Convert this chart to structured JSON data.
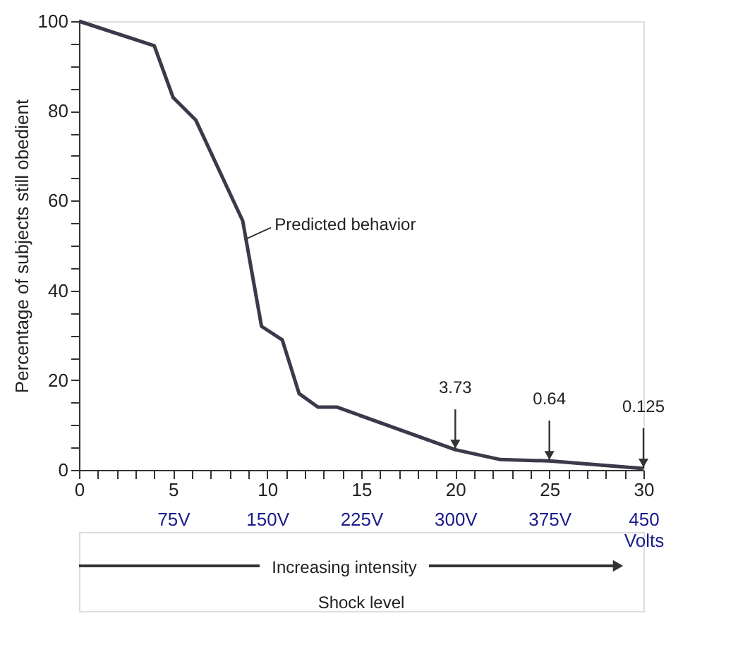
{
  "chart_data": {
    "type": "line",
    "xlabel": "Shock level",
    "ylabel": "Percentage of subjects still obedient",
    "series": [
      {
        "color": "#3a3a4a",
        "x": [
          0,
          4,
          5,
          6.2,
          8.7,
          9.7,
          10.8,
          11.7,
          12.7,
          13.7,
          20,
          22.4,
          25,
          30
        ],
        "values": [
          100,
          94.5,
          83,
          78,
          55.5,
          32,
          29,
          17,
          14,
          14,
          4.5,
          2.3,
          2,
          0.3
        ]
      }
    ],
    "xlim": [
      0,
      30
    ],
    "ylim": [
      0,
      100
    ],
    "xticks": [
      0,
      {
        "value": 1,
        "label": null
      },
      {
        "value": 2,
        "label": null
      },
      {
        "value": 3,
        "label": null
      },
      {
        "value": 4,
        "label": null
      },
      5,
      {
        "value": 6,
        "label": null
      },
      {
        "value": 7,
        "label": null
      },
      {
        "value": 8,
        "label": null
      },
      {
        "value": 9,
        "label": null
      },
      10,
      {
        "value": 11,
        "label": null
      },
      {
        "value": 12,
        "label": null
      },
      {
        "value": 13,
        "label": null
      },
      {
        "value": 14,
        "label": null
      },
      15,
      {
        "value": 16,
        "label": null
      },
      {
        "value": 17,
        "label": null
      },
      {
        "value": 18,
        "label": null
      },
      {
        "value": 19,
        "label": null
      },
      20,
      {
        "value": 21,
        "label": null
      },
      {
        "value": 22,
        "label": null
      },
      {
        "value": 23,
        "label": null
      },
      {
        "value": 24,
        "label": null
      },
      25,
      {
        "value": 26,
        "label": null
      },
      {
        "value": 27,
        "label": null
      },
      {
        "value": 28,
        "label": null
      },
      {
        "value": 29,
        "label": null
      },
      30
    ],
    "yticks": [
      0,
      {
        "value": 5,
        "label": null
      },
      {
        "value": 10,
        "label": null
      },
      {
        "value": 15,
        "label": null
      },
      20,
      {
        "value": 25,
        "label": null
      },
      {
        "value": 30,
        "label": null
      },
      {
        "value": 35,
        "label": null
      },
      40,
      {
        "value": 45,
        "label": null
      },
      {
        "value": 50,
        "label": null
      },
      {
        "value": 55,
        "label": null
      },
      60,
      {
        "value": 65,
        "label": null
      },
      {
        "value": 70,
        "label": null
      },
      {
        "value": 75,
        "label": null
      },
      80,
      {
        "value": 85,
        "label": null
      },
      {
        "value": 90,
        "label": null
      },
      {
        "value": 95,
        "label": null
      },
      100
    ],
    "x2label": "Increasing intensity",
    "x2lim": [
      0,
      450
    ],
    "x2ticks": [
      {
        "value": 75,
        "label": "75V"
      },
      {
        "value": 150,
        "label": "150V"
      },
      {
        "value": 225,
        "label": "225V"
      },
      {
        "value": 300,
        "label": "300V"
      },
      {
        "value": 375,
        "label": "375V"
      },
      {
        "value": 450,
        "label": "450 Volts"
      }
    ],
    "annotations": [
      {
        "text": "Predicted behavior",
        "x": 8.9,
        "y": 51.5
      },
      {
        "text": "3.73",
        "x": 20,
        "y": 4.5
      },
      {
        "text": "0.64",
        "x": 25,
        "y": 2
      },
      {
        "text": "0.125",
        "x": 30,
        "y": 0.3
      }
    ],
    "grid": false,
    "marker": "none",
    "line_style": "solid"
  }
}
